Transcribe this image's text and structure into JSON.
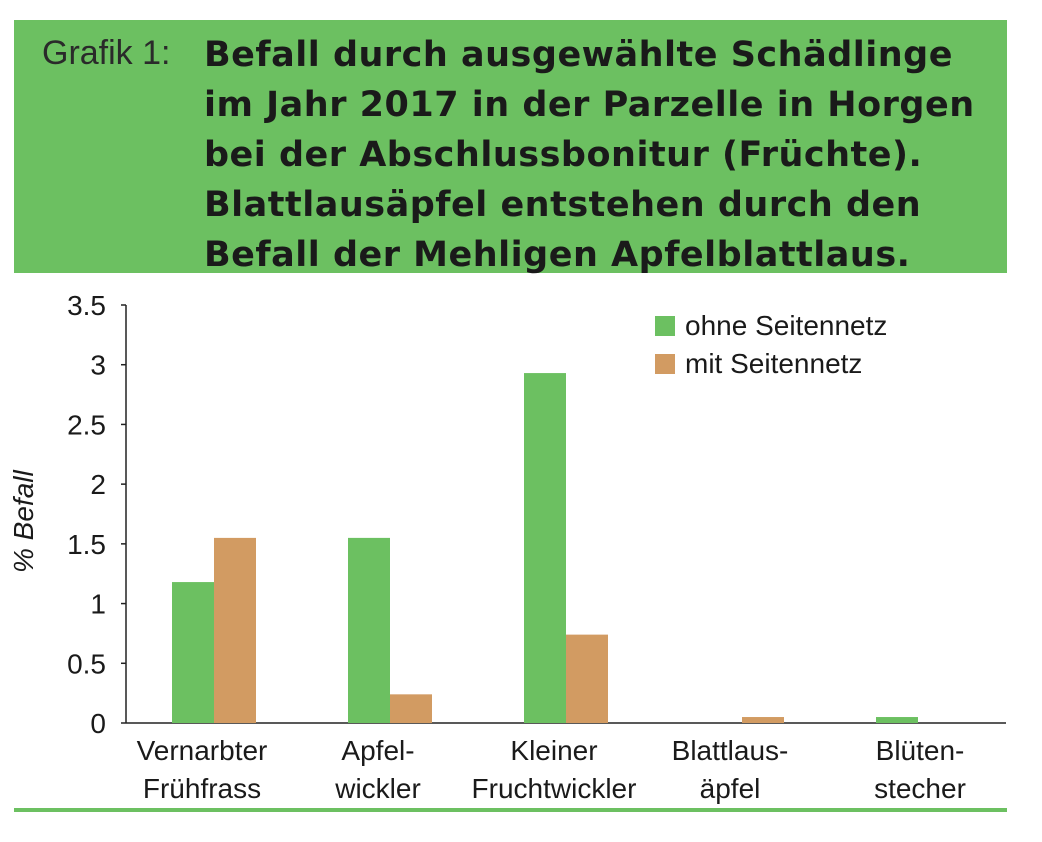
{
  "header": {
    "prefix": "Grafik 1:",
    "title": "Befall durch ausgewählte Schädlinge\nim Jahr 2017 in der Parzelle in Horgen\nbei der Abschlussbonitur (Früchte).\nBlattlausäpfel entstehen durch den\nBefall der Mehligen Apfelblattlaus."
  },
  "colors": {
    "accent": "#6cc061",
    "series1": "#6cc061",
    "series2": "#d29b62"
  },
  "chart_data": {
    "type": "bar",
    "ylabel": "% Befall",
    "ylim": [
      0,
      3.5
    ],
    "yticks": [
      "0",
      "0.5",
      "1",
      "1.5",
      "2",
      "2.5",
      "3",
      "3.5"
    ],
    "legend_position": "top-right",
    "categories": [
      [
        "Vernarbter",
        "Frühfrass"
      ],
      [
        "Apfel-",
        "wickler"
      ],
      [
        "Kleiner",
        "Fruchtwickler"
      ],
      [
        "Blattlaus-",
        "äpfel"
      ],
      [
        "Blüten-",
        "stecher"
      ]
    ],
    "series": [
      {
        "name": "ohne Seitennetz",
        "color": "#6cc061",
        "values": [
          1.18,
          1.55,
          2.93,
          0,
          0.05
        ]
      },
      {
        "name": "mit Seitennetz",
        "color": "#d29b62",
        "values": [
          1.55,
          0.24,
          0.74,
          0.05,
          0
        ]
      }
    ]
  }
}
